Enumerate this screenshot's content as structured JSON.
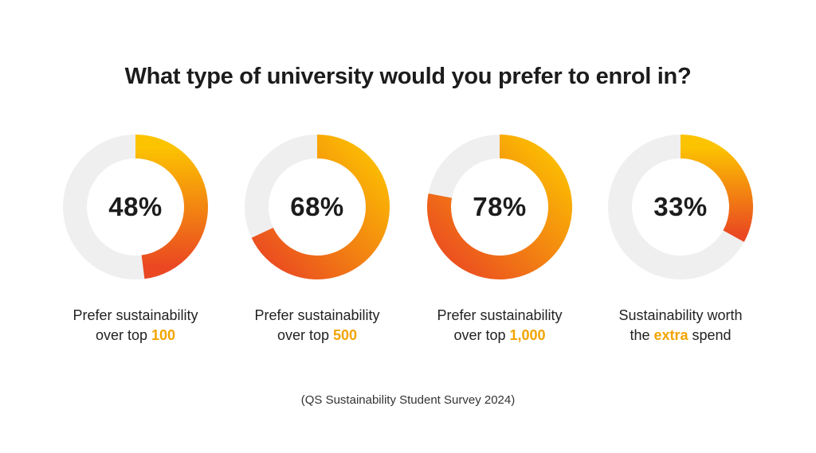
{
  "colors": {
    "track": "#efefef",
    "gradient_start": "#fcc400",
    "gradient_end": "#ea4722",
    "highlight": "#f2a400",
    "text": "#1c1c1c"
  },
  "chart_data": {
    "type": "pie",
    "title": "What type of university would you prefer to enrol in?",
    "source": "(QS Sustainability Student Survey 2024)",
    "items": [
      {
        "value": 48,
        "label": "48%",
        "caption_line1": "Prefer sustainability",
        "caption_pre": "over top ",
        "caption_highlight": "100",
        "caption_post": ""
      },
      {
        "value": 68,
        "label": "68%",
        "caption_line1": "Prefer sustainability",
        "caption_pre": "over top ",
        "caption_highlight": "500",
        "caption_post": ""
      },
      {
        "value": 78,
        "label": "78%",
        "caption_line1": "Prefer sustainability",
        "caption_pre": "over top ",
        "caption_highlight": "1,000",
        "caption_post": ""
      },
      {
        "value": 33,
        "label": "33%",
        "caption_line1": "Sustainability worth",
        "caption_pre": "the ",
        "caption_highlight": "extra",
        "caption_post": " spend"
      }
    ]
  }
}
